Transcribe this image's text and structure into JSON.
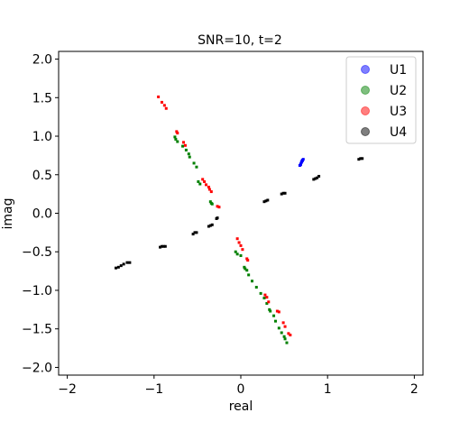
{
  "chart_data": {
    "type": "scatter",
    "title": "SNR=10, t=2",
    "xlabel": "real",
    "ylabel": "imag",
    "xlim": [
      -2.1,
      2.1
    ],
    "ylim": [
      -2.1,
      2.1
    ],
    "xticks": [
      -2,
      -1,
      0,
      1,
      2
    ],
    "xtick_labels": [
      "−2",
      "−1",
      "0",
      "1",
      "2"
    ],
    "yticks": [
      -2.0,
      -1.5,
      -1.0,
      -0.5,
      0.0,
      0.5,
      1.0,
      1.5,
      2.0
    ],
    "ytick_labels": [
      "−2.0",
      "−1.5",
      "−1.0",
      "−0.5",
      "0.0",
      "0.5",
      "1.0",
      "1.5",
      "2.0"
    ],
    "grid": false,
    "legend_position": "top-right",
    "series": [
      {
        "name": "U1",
        "color": "#0000ff",
        "points": [
          [
            0.68,
            0.62
          ],
          [
            0.69,
            0.64
          ],
          [
            0.7,
            0.66
          ],
          [
            0.7,
            0.67
          ],
          [
            0.71,
            0.69
          ],
          [
            0.72,
            0.7
          ],
          [
            0.69,
            0.63
          ],
          [
            0.71,
            0.68
          ]
        ]
      },
      {
        "name": "U2",
        "color": "#008000",
        "points": [
          [
            -0.76,
            0.99
          ],
          [
            -0.75,
            0.96
          ],
          [
            -0.73,
            0.93
          ],
          [
            -0.67,
            0.87
          ],
          [
            -0.63,
            0.82
          ],
          [
            -0.6,
            0.77
          ],
          [
            -0.59,
            0.73
          ],
          [
            -0.54,
            0.65
          ],
          [
            -0.51,
            0.6
          ],
          [
            -0.49,
            0.41
          ],
          [
            -0.47,
            0.38
          ],
          [
            -0.35,
            0.15
          ],
          [
            -0.34,
            0.13
          ],
          [
            -0.33,
            0.12
          ],
          [
            -0.06,
            -0.5
          ],
          [
            -0.04,
            -0.53
          ],
          [
            0.0,
            -0.55
          ],
          [
            0.04,
            -0.7
          ],
          [
            0.05,
            -0.72
          ],
          [
            0.07,
            -0.74
          ],
          [
            0.09,
            -0.8
          ],
          [
            0.13,
            -0.88
          ],
          [
            0.18,
            -0.96
          ],
          [
            0.23,
            -1.04
          ],
          [
            0.27,
            -1.1
          ],
          [
            0.3,
            -1.17
          ],
          [
            0.33,
            -1.25
          ],
          [
            0.34,
            -1.27
          ],
          [
            0.38,
            -1.33
          ],
          [
            0.4,
            -1.4
          ],
          [
            0.44,
            -1.49
          ],
          [
            0.47,
            -1.55
          ],
          [
            0.5,
            -1.6
          ],
          [
            0.51,
            -1.63
          ],
          [
            0.53,
            -1.68
          ]
        ]
      },
      {
        "name": "U3",
        "color": "#ff0000",
        "points": [
          [
            -0.95,
            1.51
          ],
          [
            -0.91,
            1.44
          ],
          [
            -0.88,
            1.4
          ],
          [
            -0.86,
            1.36
          ],
          [
            -0.74,
            1.06
          ],
          [
            -0.73,
            1.04
          ],
          [
            -0.66,
            0.92
          ],
          [
            -0.64,
            0.88
          ],
          [
            -0.44,
            0.44
          ],
          [
            -0.42,
            0.41
          ],
          [
            -0.4,
            0.37
          ],
          [
            -0.37,
            0.34
          ],
          [
            -0.36,
            0.31
          ],
          [
            -0.34,
            0.28
          ],
          [
            -0.27,
            0.09
          ],
          [
            -0.25,
            0.08
          ],
          [
            -0.04,
            -0.33
          ],
          [
            -0.02,
            -0.38
          ],
          [
            0.0,
            -0.42
          ],
          [
            0.02,
            -0.47
          ],
          [
            0.07,
            -0.59
          ],
          [
            0.08,
            -0.61
          ],
          [
            0.28,
            -1.06
          ],
          [
            0.3,
            -1.09
          ],
          [
            0.32,
            -1.15
          ],
          [
            0.42,
            -1.27
          ],
          [
            0.44,
            -1.28
          ],
          [
            0.49,
            -1.42
          ],
          [
            0.51,
            -1.47
          ],
          [
            0.55,
            -1.56
          ],
          [
            0.57,
            -1.58
          ]
        ]
      },
      {
        "name": "U4",
        "color": "#000000",
        "points": [
          [
            -1.44,
            -0.71
          ],
          [
            -1.41,
            -0.7
          ],
          [
            -1.38,
            -0.68
          ],
          [
            -1.35,
            -0.66
          ],
          [
            -1.31,
            -0.64
          ],
          [
            -1.28,
            -0.64
          ],
          [
            -0.93,
            -0.44
          ],
          [
            -0.91,
            -0.43
          ],
          [
            -0.89,
            -0.43
          ],
          [
            -0.87,
            -0.43
          ],
          [
            -0.55,
            -0.27
          ],
          [
            -0.53,
            -0.25
          ],
          [
            -0.51,
            -0.25
          ],
          [
            -0.37,
            -0.17
          ],
          [
            -0.35,
            -0.16
          ],
          [
            -0.33,
            -0.15
          ],
          [
            -0.28,
            -0.07
          ],
          [
            -0.27,
            -0.06
          ],
          [
            0.27,
            0.15
          ],
          [
            0.29,
            0.16
          ],
          [
            0.31,
            0.17
          ],
          [
            0.47,
            0.25
          ],
          [
            0.49,
            0.26
          ],
          [
            0.51,
            0.26
          ],
          [
            0.84,
            0.44
          ],
          [
            0.86,
            0.45
          ],
          [
            0.88,
            0.46
          ],
          [
            0.9,
            0.48
          ],
          [
            1.36,
            0.7
          ],
          [
            1.38,
            0.71
          ],
          [
            1.4,
            0.71
          ]
        ]
      }
    ]
  }
}
